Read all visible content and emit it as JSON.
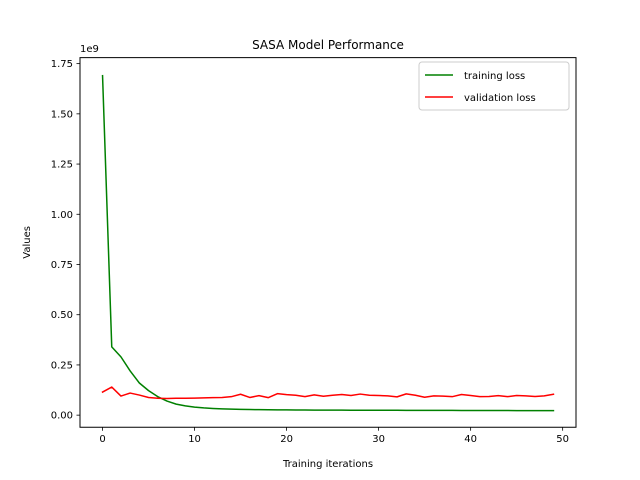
{
  "chart_data": {
    "type": "line",
    "title": "SASA Model Performance",
    "xlabel": "Training iterations",
    "ylabel": "Values",
    "y_offset_text": "1e9",
    "y_scale": 1000000000,
    "xlim": [
      -2.45,
      51.45
    ],
    "ylim": [
      -60000000,
      1780000000
    ],
    "x_ticks": [
      0,
      10,
      20,
      30,
      40,
      50
    ],
    "x_tick_labels": [
      "0",
      "10",
      "20",
      "30",
      "40",
      "50"
    ],
    "y_ticks": [
      0,
      250000000,
      500000000,
      750000000,
      1000000000,
      1250000000,
      1500000000,
      1750000000
    ],
    "y_tick_labels": [
      "0.00",
      "0.25",
      "0.50",
      "0.75",
      "1.00",
      "1.25",
      "1.50",
      "1.75"
    ],
    "grid": false,
    "legend_position": "top-right",
    "x": [
      0,
      1,
      2,
      3,
      4,
      5,
      6,
      7,
      8,
      9,
      10,
      11,
      12,
      13,
      14,
      15,
      16,
      17,
      18,
      19,
      20,
      21,
      22,
      23,
      24,
      25,
      26,
      27,
      28,
      29,
      30,
      31,
      32,
      33,
      34,
      35,
      36,
      37,
      38,
      39,
      40,
      41,
      42,
      43,
      44,
      45,
      46,
      47,
      48,
      49
    ],
    "series": [
      {
        "name": "training loss",
        "color": "#008000",
        "values": [
          1690000000,
          340000000,
          290000000,
          220000000,
          160000000,
          122000000,
          92000000,
          70000000,
          55000000,
          46000000,
          40000000,
          36000000,
          33000000,
          31000000,
          30000000,
          29000000,
          28000000,
          27500000,
          27000000,
          26500000,
          26000000,
          25800000,
          25500000,
          25300000,
          25100000,
          25000000,
          24800000,
          24600000,
          24500000,
          24400000,
          24300000,
          24200000,
          24100000,
          24000000,
          23900000,
          23800000,
          23700000,
          23600000,
          23500000,
          23400000,
          23300000,
          23200000,
          23100000,
          23000000,
          22900000,
          22800000,
          22700000,
          22600000,
          22500000,
          22400000
        ]
      },
      {
        "name": "validation loss",
        "color": "#ff0000",
        "values": [
          115000000,
          140000000,
          95000000,
          110000000,
          100000000,
          88000000,
          84000000,
          83000000,
          84000000,
          84000000,
          85000000,
          86000000,
          87000000,
          88000000,
          92000000,
          104000000,
          88000000,
          97000000,
          87000000,
          107000000,
          102000000,
          99000000,
          92000000,
          101000000,
          94000000,
          99000000,
          103000000,
          98000000,
          105000000,
          99000000,
          98000000,
          96000000,
          91000000,
          106000000,
          99000000,
          89000000,
          96000000,
          95000000,
          92000000,
          103000000,
          98000000,
          92000000,
          93000000,
          97000000,
          92000000,
          98000000,
          96000000,
          93000000,
          96000000,
          104000000
        ]
      }
    ]
  }
}
